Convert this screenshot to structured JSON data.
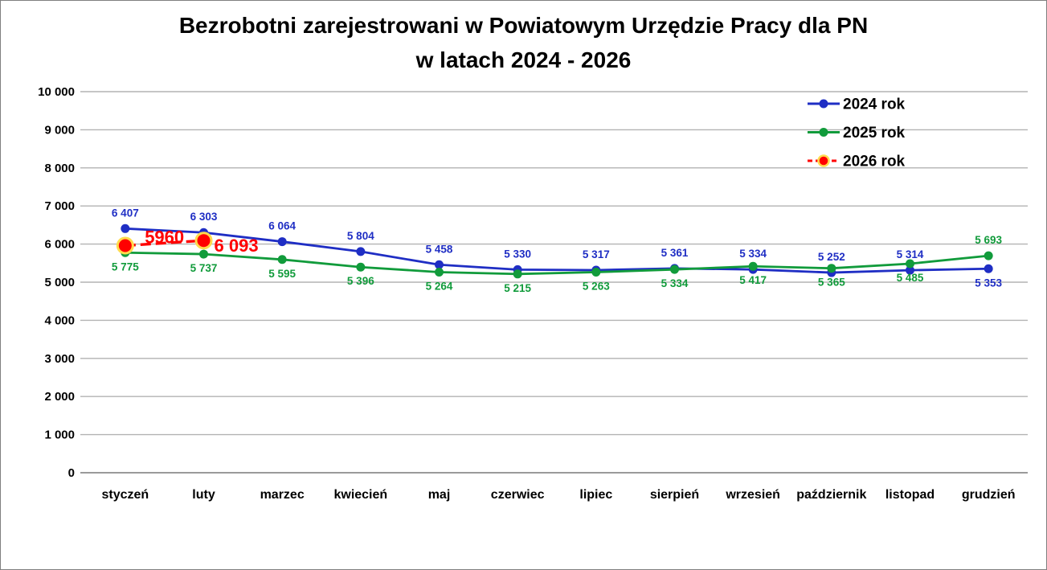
{
  "title": {
    "line1": "Bezrobotni zarejestrowani w Powiatowym Urzędzie Pracy dla PN",
    "line2": "w latach 2024 - 2026"
  },
  "colors": {
    "background": "#FFFFFF",
    "border": "#7F7F7F",
    "gridline": "#B3B3B3",
    "axis_line": "#8C8C8C",
    "axis_text": "#000000",
    "series_2024": "#1F2EC4",
    "series_2025": "#119B3B",
    "series_2026": "#FF0000",
    "marker_ring_2026": "#FFDB4D"
  },
  "chart_data": {
    "type": "line",
    "title": "Bezrobotni zarejestrowani w Powiatowym Urzędzie Pracy dla PN w latach 2024 - 2026",
    "categories": [
      "styczeń",
      "luty",
      "marzec",
      "kwiecień",
      "maj",
      "czerwiec",
      "lipiec",
      "sierpień",
      "wrzesień",
      "październik",
      "listopad",
      "grudzień"
    ],
    "ylim": [
      0,
      10000
    ],
    "ytick_step": 1000,
    "ytick_labels": [
      "0",
      "1 000",
      "2 000",
      "3 000",
      "4 000",
      "5 000",
      "6 000",
      "7 000",
      "8 000",
      "9 000",
      "10 000"
    ],
    "grid": true,
    "legend_position": "top-right",
    "series": [
      {
        "name": "2024 rok",
        "color": "#1F2EC4",
        "line_style": "solid",
        "marker": "circle",
        "values": [
          6407,
          6303,
          6064,
          5804,
          5458,
          5330,
          5317,
          5361,
          5334,
          5252,
          5314,
          5353
        ],
        "labels": [
          "6 407",
          "6 303",
          "6 064",
          "5 804",
          "5 458",
          "5 330",
          "5 317",
          "5 361",
          "5 334",
          "5 252",
          "5 314",
          "5 353"
        ],
        "label_sides": [
          "above",
          "above",
          "above",
          "above",
          "above",
          "above",
          "above",
          "above",
          "above",
          "above",
          "above",
          "below"
        ]
      },
      {
        "name": "2025 rok",
        "color": "#119B3B",
        "line_style": "solid",
        "marker": "circle",
        "values": [
          5775,
          5737,
          5595,
          5396,
          5264,
          5215,
          5263,
          5334,
          5417,
          5365,
          5485,
          5693
        ],
        "labels": [
          "5 775",
          "5 737",
          "5 595",
          "5 396",
          "5 264",
          "5 215",
          "5 263",
          "5 334",
          "5 417",
          "5 365",
          "5 485",
          "5 693"
        ],
        "label_sides": [
          "below",
          "below",
          "below",
          "below",
          "below",
          "below",
          "below",
          "below",
          "below",
          "below",
          "below",
          "above"
        ]
      },
      {
        "name": "2026 rok",
        "color": "#FF0000",
        "line_style": "dashed",
        "marker": "circle-ring",
        "marker_ring": "#FFDB4D",
        "values": [
          5960,
          6093,
          null,
          null,
          null,
          null,
          null,
          null,
          null,
          null,
          null,
          null
        ],
        "labels": [
          "5960",
          "6 093",
          null,
          null,
          null,
          null,
          null,
          null,
          null,
          null,
          null,
          null
        ],
        "label_sides": [
          "mid",
          "right",
          null,
          null,
          null,
          null,
          null,
          null,
          null,
          null,
          null,
          null
        ]
      }
    ]
  }
}
